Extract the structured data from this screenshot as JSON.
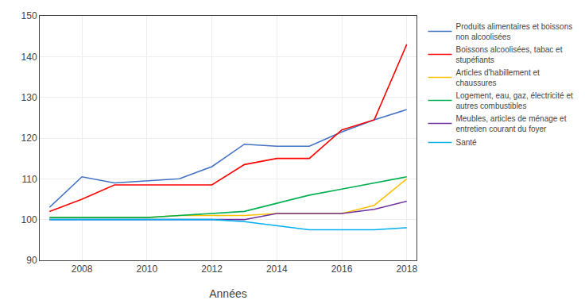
{
  "chart_data": {
    "type": "line",
    "x": [
      2007,
      2008,
      2009,
      2010,
      2011,
      2012,
      2013,
      2014,
      2015,
      2016,
      2017,
      2018
    ],
    "series": [
      {
        "name": "Produits alimentaires et boissons\nnon alcoolisées",
        "color": "#4472C4",
        "values": [
          103,
          110.5,
          109,
          109.5,
          110,
          113,
          118.5,
          118,
          118,
          121.5,
          124.5,
          127
        ]
      },
      {
        "name": "Boissons alcoolisées, tabac et\nstupéfiants",
        "color": "#FF0000",
        "values": [
          102,
          105,
          108.5,
          108.5,
          108.5,
          108.5,
          113.5,
          115,
          115,
          122,
          124.5,
          143
        ]
      },
      {
        "name": "Articles d'habillement et\nchaussures",
        "color": "#FFC000",
        "values": [
          100.5,
          100.5,
          100.5,
          100.5,
          101,
          101,
          101,
          101.5,
          101.5,
          101.5,
          103.5,
          110
        ]
      },
      {
        "name": "Logement, eau, gaz, électricité et\nautres combustibles",
        "color": "#00B050",
        "values": [
          100.5,
          100.5,
          100.5,
          100.5,
          101,
          101.5,
          102,
          104,
          106,
          107.5,
          109,
          110.5
        ]
      },
      {
        "name": "Meubles, articles de ménage et\nentretien courant du foyer",
        "color": "#7030A0",
        "values": [
          100,
          100,
          100,
          100,
          100,
          100,
          100,
          101.5,
          101.5,
          101.5,
          102.5,
          104.5
        ]
      },
      {
        "name": "Santé",
        "color": "#00B0F0",
        "values": [
          100,
          100,
          100,
          100,
          100,
          100,
          99.5,
          98.5,
          97.5,
          97.5,
          97.5,
          98
        ]
      }
    ],
    "xlabel": "Années",
    "xlim": [
      2006.7,
      2018.3
    ],
    "xticks": [
      2008,
      2010,
      2012,
      2014,
      2016,
      2018
    ],
    "ylim": [
      90,
      150
    ],
    "yticks": [
      90,
      100,
      110,
      120,
      130,
      140,
      150
    ],
    "grid": true,
    "legend": "right"
  }
}
